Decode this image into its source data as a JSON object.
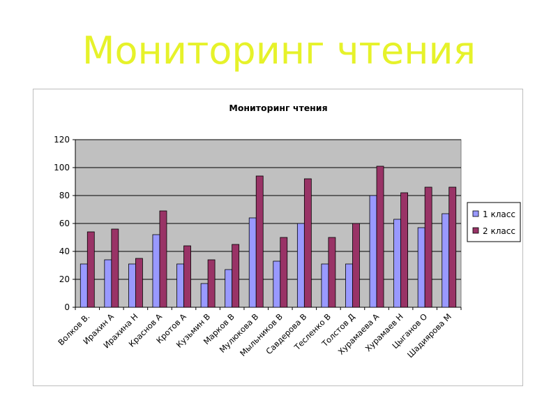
{
  "slide": {
    "title": "Мониторинг чтения"
  },
  "chart_data": {
    "type": "bar",
    "title": "Мониторинг чтения",
    "xlabel": "",
    "ylabel": "",
    "ylim": [
      0,
      120
    ],
    "yticks": [
      "0",
      "20",
      "40",
      "60",
      "80",
      "100",
      "120"
    ],
    "grid": true,
    "legend_position": "right",
    "categories": [
      "Волков В.",
      "Ирахин А",
      "Ирахина Н",
      "Краснов А",
      "Кротов А",
      "Кузьмин В",
      "Марков В",
      "Мулюкова В",
      "Мыльников В",
      "Савдерова В",
      "Тесленко В",
      "Толстов Д",
      "Хурамаева А",
      "Хурамаев Н",
      "Цыганов О",
      "Шадиярова М"
    ],
    "series": [
      {
        "name": "1 класс",
        "color": "#9999ff",
        "values": [
          31,
          34,
          31,
          52,
          31,
          17,
          27,
          64,
          33,
          60,
          31,
          31,
          80,
          63,
          57,
          67
        ]
      },
      {
        "name": "2 класс",
        "color": "#993366",
        "values": [
          54,
          56,
          35,
          69,
          44,
          34,
          45,
          94,
          50,
          92,
          50,
          60,
          101,
          82,
          86,
          86
        ]
      }
    ],
    "plot_background": "#c0c0c0"
  }
}
